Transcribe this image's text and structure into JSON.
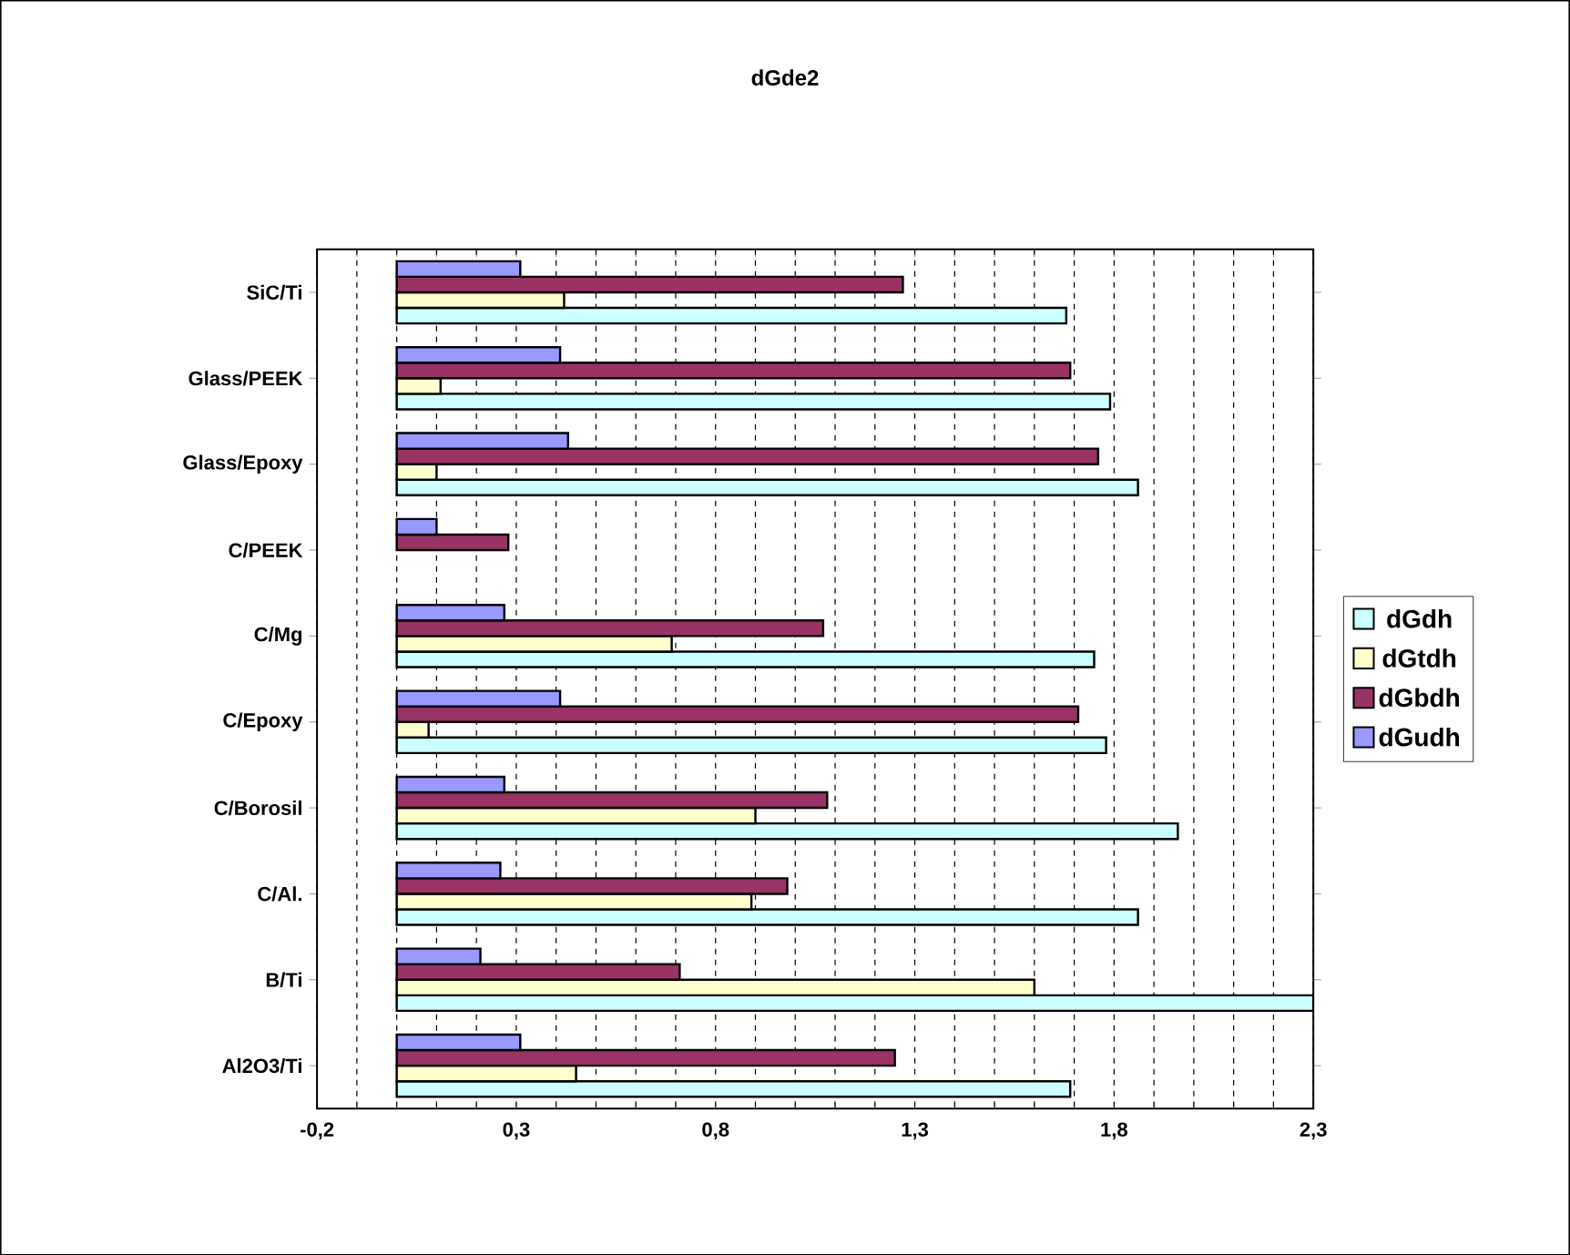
{
  "chart_data": {
    "type": "bar",
    "orientation": "horizontal",
    "title": "dGde2",
    "categories": [
      "SiC/Ti",
      "Glass/PEEK",
      "Glass/Epoxy",
      "C/PEEK",
      "C/Mg",
      "C/Epoxy",
      "C/Borosil",
      "C/Al.",
      "B/Ti",
      "Al2O3/Ti"
    ],
    "series": [
      {
        "name": "dGdh",
        "color": "#ccffff",
        "values": [
          1.68,
          1.79,
          1.86,
          null,
          1.75,
          1.78,
          1.96,
          1.86,
          2.3,
          1.69
        ]
      },
      {
        "name": "dGtdh",
        "color": "#ffffcc",
        "values": [
          0.42,
          0.11,
          0.1,
          null,
          0.69,
          0.08,
          0.9,
          0.89,
          1.6,
          0.45
        ]
      },
      {
        "name": "dGbdh",
        "color": "#993366",
        "values": [
          1.27,
          1.69,
          1.76,
          0.28,
          1.07,
          1.71,
          1.08,
          0.98,
          0.71,
          1.25
        ]
      },
      {
        "name": "dGudh",
        "color": "#9999ff",
        "values": [
          0.31,
          0.41,
          0.43,
          0.1,
          0.27,
          0.41,
          0.27,
          0.26,
          0.21,
          0.31
        ]
      }
    ],
    "xlim": [
      -0.2,
      2.3
    ],
    "xticks": [
      {
        "value": -0.2,
        "label": "-0,2"
      },
      {
        "value": -0.1,
        "label": null
      },
      {
        "value": 0,
        "label": null
      },
      {
        "value": 0.1,
        "label": null
      },
      {
        "value": 0.2,
        "label": null
      },
      {
        "value": 0.3,
        "label": "0,3"
      },
      {
        "value": 0.4,
        "label": null
      },
      {
        "value": 0.5,
        "label": null
      },
      {
        "value": 0.6,
        "label": null
      },
      {
        "value": 0.7,
        "label": null
      },
      {
        "value": 0.8,
        "label": "0,8"
      },
      {
        "value": 0.9,
        "label": null
      },
      {
        "value": 1.0,
        "label": null
      },
      {
        "value": 1.1,
        "label": null
      },
      {
        "value": 1.2,
        "label": null
      },
      {
        "value": 1.3,
        "label": "1,3"
      },
      {
        "value": 1.4,
        "label": null
      },
      {
        "value": 1.5,
        "label": null
      },
      {
        "value": 1.6,
        "label": null
      },
      {
        "value": 1.7,
        "label": null
      },
      {
        "value": 1.8,
        "label": "1,8"
      },
      {
        "value": 1.9,
        "label": null
      },
      {
        "value": 2.0,
        "label": null
      },
      {
        "value": 2.1,
        "label": null
      },
      {
        "value": 2.2,
        "label": null
      },
      {
        "value": 2.3,
        "label": "2,3"
      }
    ],
    "grid": "x",
    "legend": "right"
  }
}
